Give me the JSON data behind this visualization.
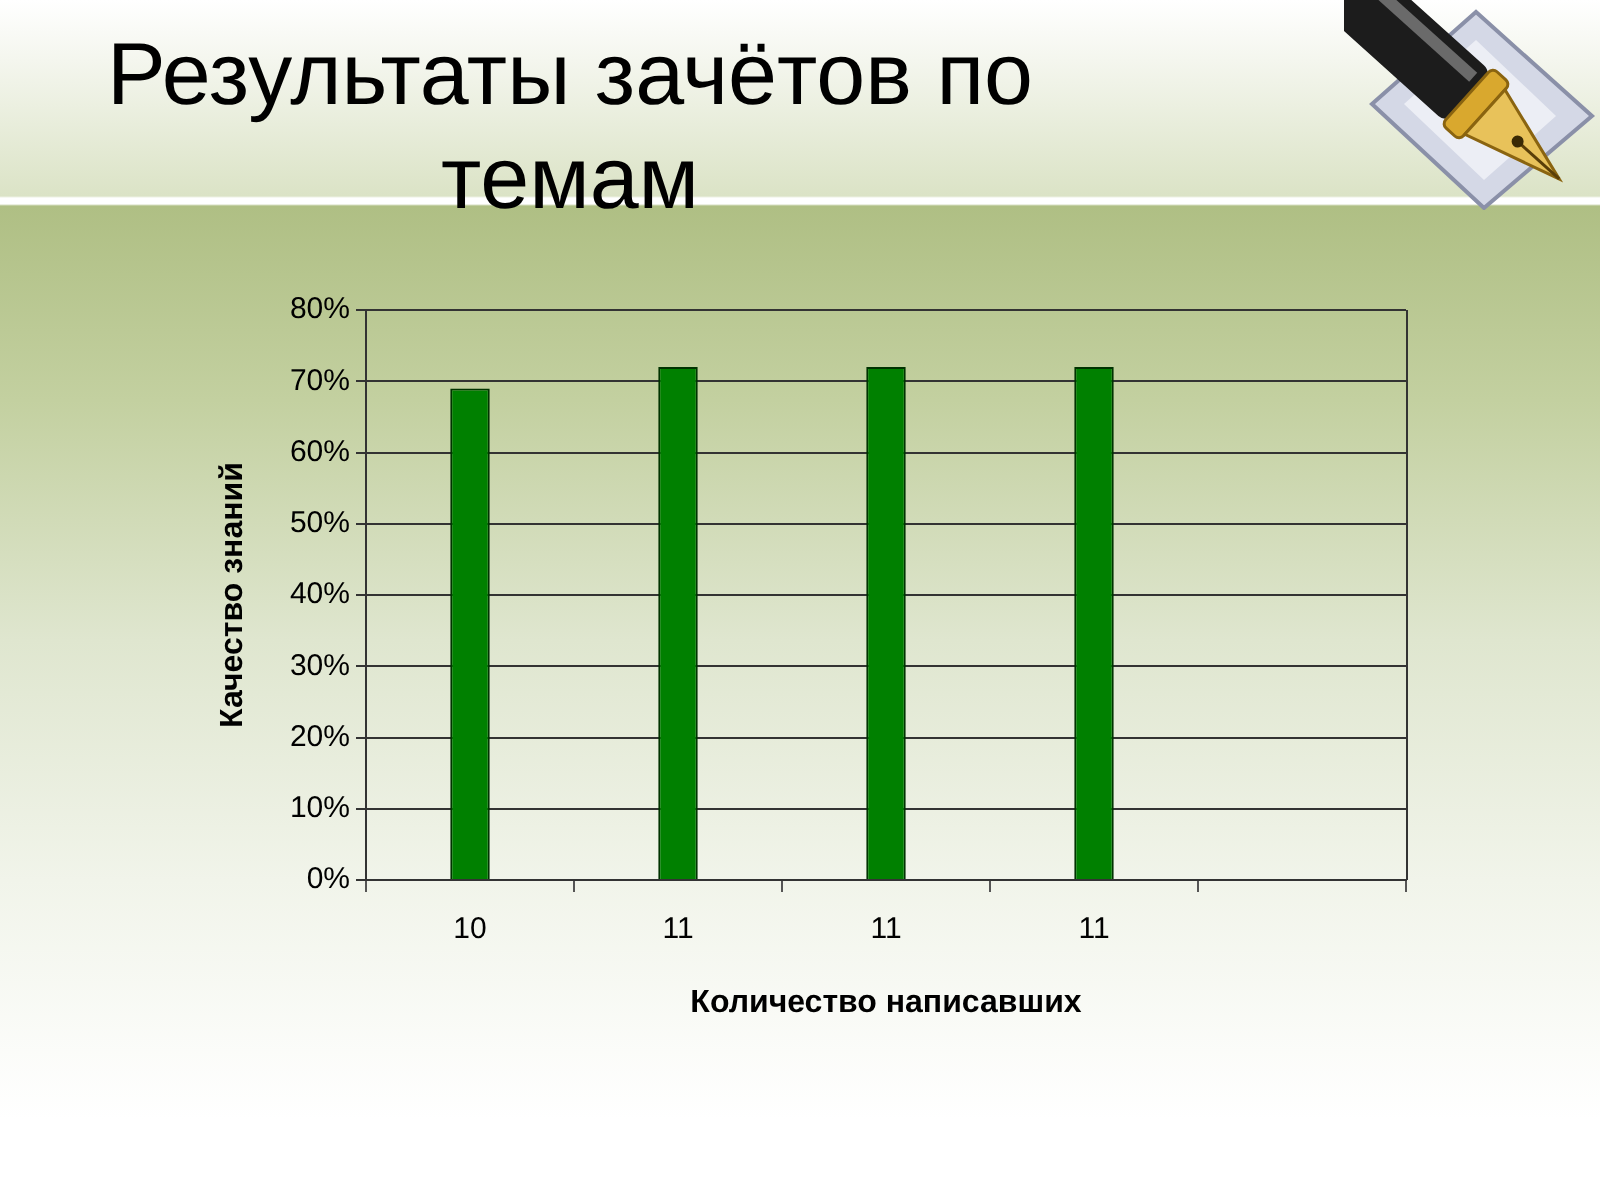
{
  "chart_data": {
    "type": "bar",
    "title": "Результаты зачётов по темам",
    "xlabel": "Количество написавших",
    "ylabel": "Качество знаний",
    "categories": [
      "10",
      "11",
      "11",
      "11",
      null
    ],
    "values": [
      69,
      72,
      72,
      72,
      null
    ],
    "color": "#008000",
    "ylim": [
      0,
      80
    ],
    "yticks": [
      {
        "value": 0,
        "label": "0%"
      },
      {
        "value": 10,
        "label": "10%"
      },
      {
        "value": 20,
        "label": "20%"
      },
      {
        "value": 30,
        "label": "30%"
      },
      {
        "value": 40,
        "label": "40%"
      },
      {
        "value": 50,
        "label": "50%"
      },
      {
        "value": 60,
        "label": "60%"
      },
      {
        "value": 70,
        "label": "70%"
      },
      {
        "value": 80,
        "label": "80%"
      }
    ],
    "grid": "y"
  }
}
